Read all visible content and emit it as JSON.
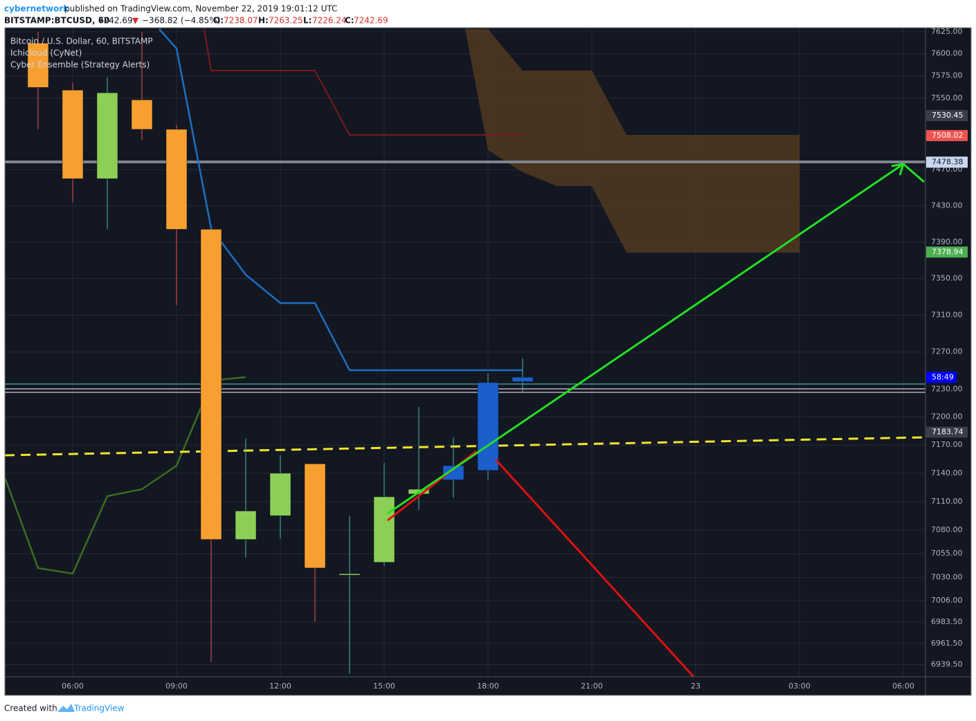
{
  "header": {
    "author": "cybernetwork",
    "published": "published on TradingView.com, November 22, 2019 19:01:12 UTC",
    "symbol": "BITSTAMP:BTCUSD, 60",
    "arrow": "▼",
    "change": "−368.82 (−4.85%)",
    "o_label": "O:",
    "h_label": "H:",
    "l_label": "L:",
    "c_label": "C:"
  },
  "legend": [
    "Bitcoin / U.S. Dollar, 60, BITSTAMP",
    "Ichicloud (CyNet)",
    "Cyber Ensemble (Strategy Alerts)"
  ],
  "footer": {
    "created": "Created with",
    "brand": "TradingView"
  },
  "chart_data": {
    "type": "candlestick",
    "log_scale": true,
    "grid": true,
    "categories": [
      null,
      "06:00",
      null,
      null,
      "09:00",
      null,
      null,
      "12:00",
      null,
      null,
      "15:00",
      null,
      null,
      "18:00",
      null,
      null,
      "21:00",
      null,
      null,
      "23",
      null,
      null,
      "03:00",
      null,
      null,
      "06:00"
    ],
    "open": [
      7612,
      7559,
      7460,
      7548,
      7515,
      7404,
      7070,
      7095,
      7150,
      7033,
      7046,
      7118,
      7133,
      7143,
      7238.07,
      null,
      null,
      null,
      null,
      null,
      null,
      null,
      null,
      null,
      null,
      null
    ],
    "high": [
      7625,
      7567,
      7573,
      7625,
      7520,
      7404,
      7177,
      7159,
      7150,
      7095,
      7151,
      7211,
      7178,
      7247,
      7263.25,
      null,
      null,
      null,
      null,
      null,
      null,
      null,
      null,
      null,
      null,
      null
    ],
    "low": [
      7515,
      7434,
      7404,
      7503,
      7321,
      6942,
      7051,
      7071,
      6984,
      6930,
      7042,
      7101,
      7114,
      7133,
      7226.24,
      null,
      null,
      null,
      null,
      null,
      null,
      null,
      null,
      null,
      null,
      null
    ],
    "close": [
      7562,
      7460,
      7556,
      7515,
      7404,
      7070,
      7100,
      7140,
      7040,
      7034,
      7115,
      7123,
      7148,
      7237,
      7242.69,
      null,
      null,
      null,
      null,
      null,
      null,
      null,
      null,
      null,
      null,
      null
    ],
    "candle_colors": [
      "#f7a030",
      "#f7a030",
      "#8bcf56",
      "#f7a030",
      "#f7a030",
      "#f7a030",
      "#8bcf56",
      "#8bcf56",
      "#f7a030",
      "#8bcf56",
      "#8bcf56",
      "#8bcf56",
      "#1a5fcc",
      "#1a5fcc",
      "#1a5fcc",
      null,
      null,
      null,
      null,
      null,
      null,
      null,
      null,
      null,
      null,
      null
    ],
    "wick_up": "#4db6ac",
    "wick_down": "#ef5350",
    "ylim": [
      6927,
      7628
    ],
    "yticks": [
      {
        "value": 7625,
        "label": "7625.00"
      },
      {
        "value": 7600,
        "label": "7600.00"
      },
      {
        "value": 7575,
        "label": "7575.00"
      },
      {
        "value": 7550,
        "label": "7550.00"
      },
      {
        "value": 7470,
        "label": "7470.00"
      },
      {
        "value": 7430,
        "label": "7430.00"
      },
      {
        "value": 7390,
        "label": "7390.00"
      },
      {
        "value": 7350,
        "label": "7350.00"
      },
      {
        "value": 7310,
        "label": "7310.00"
      },
      {
        "value": 7270,
        "label": "7270.00"
      },
      {
        "value": 7230,
        "label": "7230.00"
      },
      {
        "value": 7200,
        "label": "7200.00"
      },
      {
        "value": 7170,
        "label": "7170.00"
      },
      {
        "value": 7140,
        "label": "7140.00"
      },
      {
        "value": 7110,
        "label": "7110.00"
      },
      {
        "value": 7080,
        "label": "7080.00"
      },
      {
        "value": 7055,
        "label": "7055.00"
      },
      {
        "value": 7030,
        "label": "7030.00"
      },
      {
        "value": 7006,
        "label": "7006.00"
      },
      {
        "value": 6983.5,
        "label": "6983.50"
      },
      {
        "value": 6961.5,
        "label": "6961.50"
      },
      {
        "value": 6939.5,
        "label": "6939.50"
      }
    ],
    "price_labels": [
      {
        "value": 7530.45,
        "color": "#3a3e4a",
        "text_color": "#ffffff"
      },
      {
        "value": 7508.02,
        "color": "#ef5350",
        "text_color": "#ffffff"
      },
      {
        "value": 7478.38,
        "color": "#c8d8f0",
        "text_color": "#131722"
      },
      {
        "value": 7378.94,
        "color": "#4caf50",
        "text_color": "#ffffff"
      },
      {
        "value": 7183.74,
        "color": "#3a3e4a",
        "text_color": "#ffffff"
      }
    ],
    "countdown": "58:49"
  }
}
